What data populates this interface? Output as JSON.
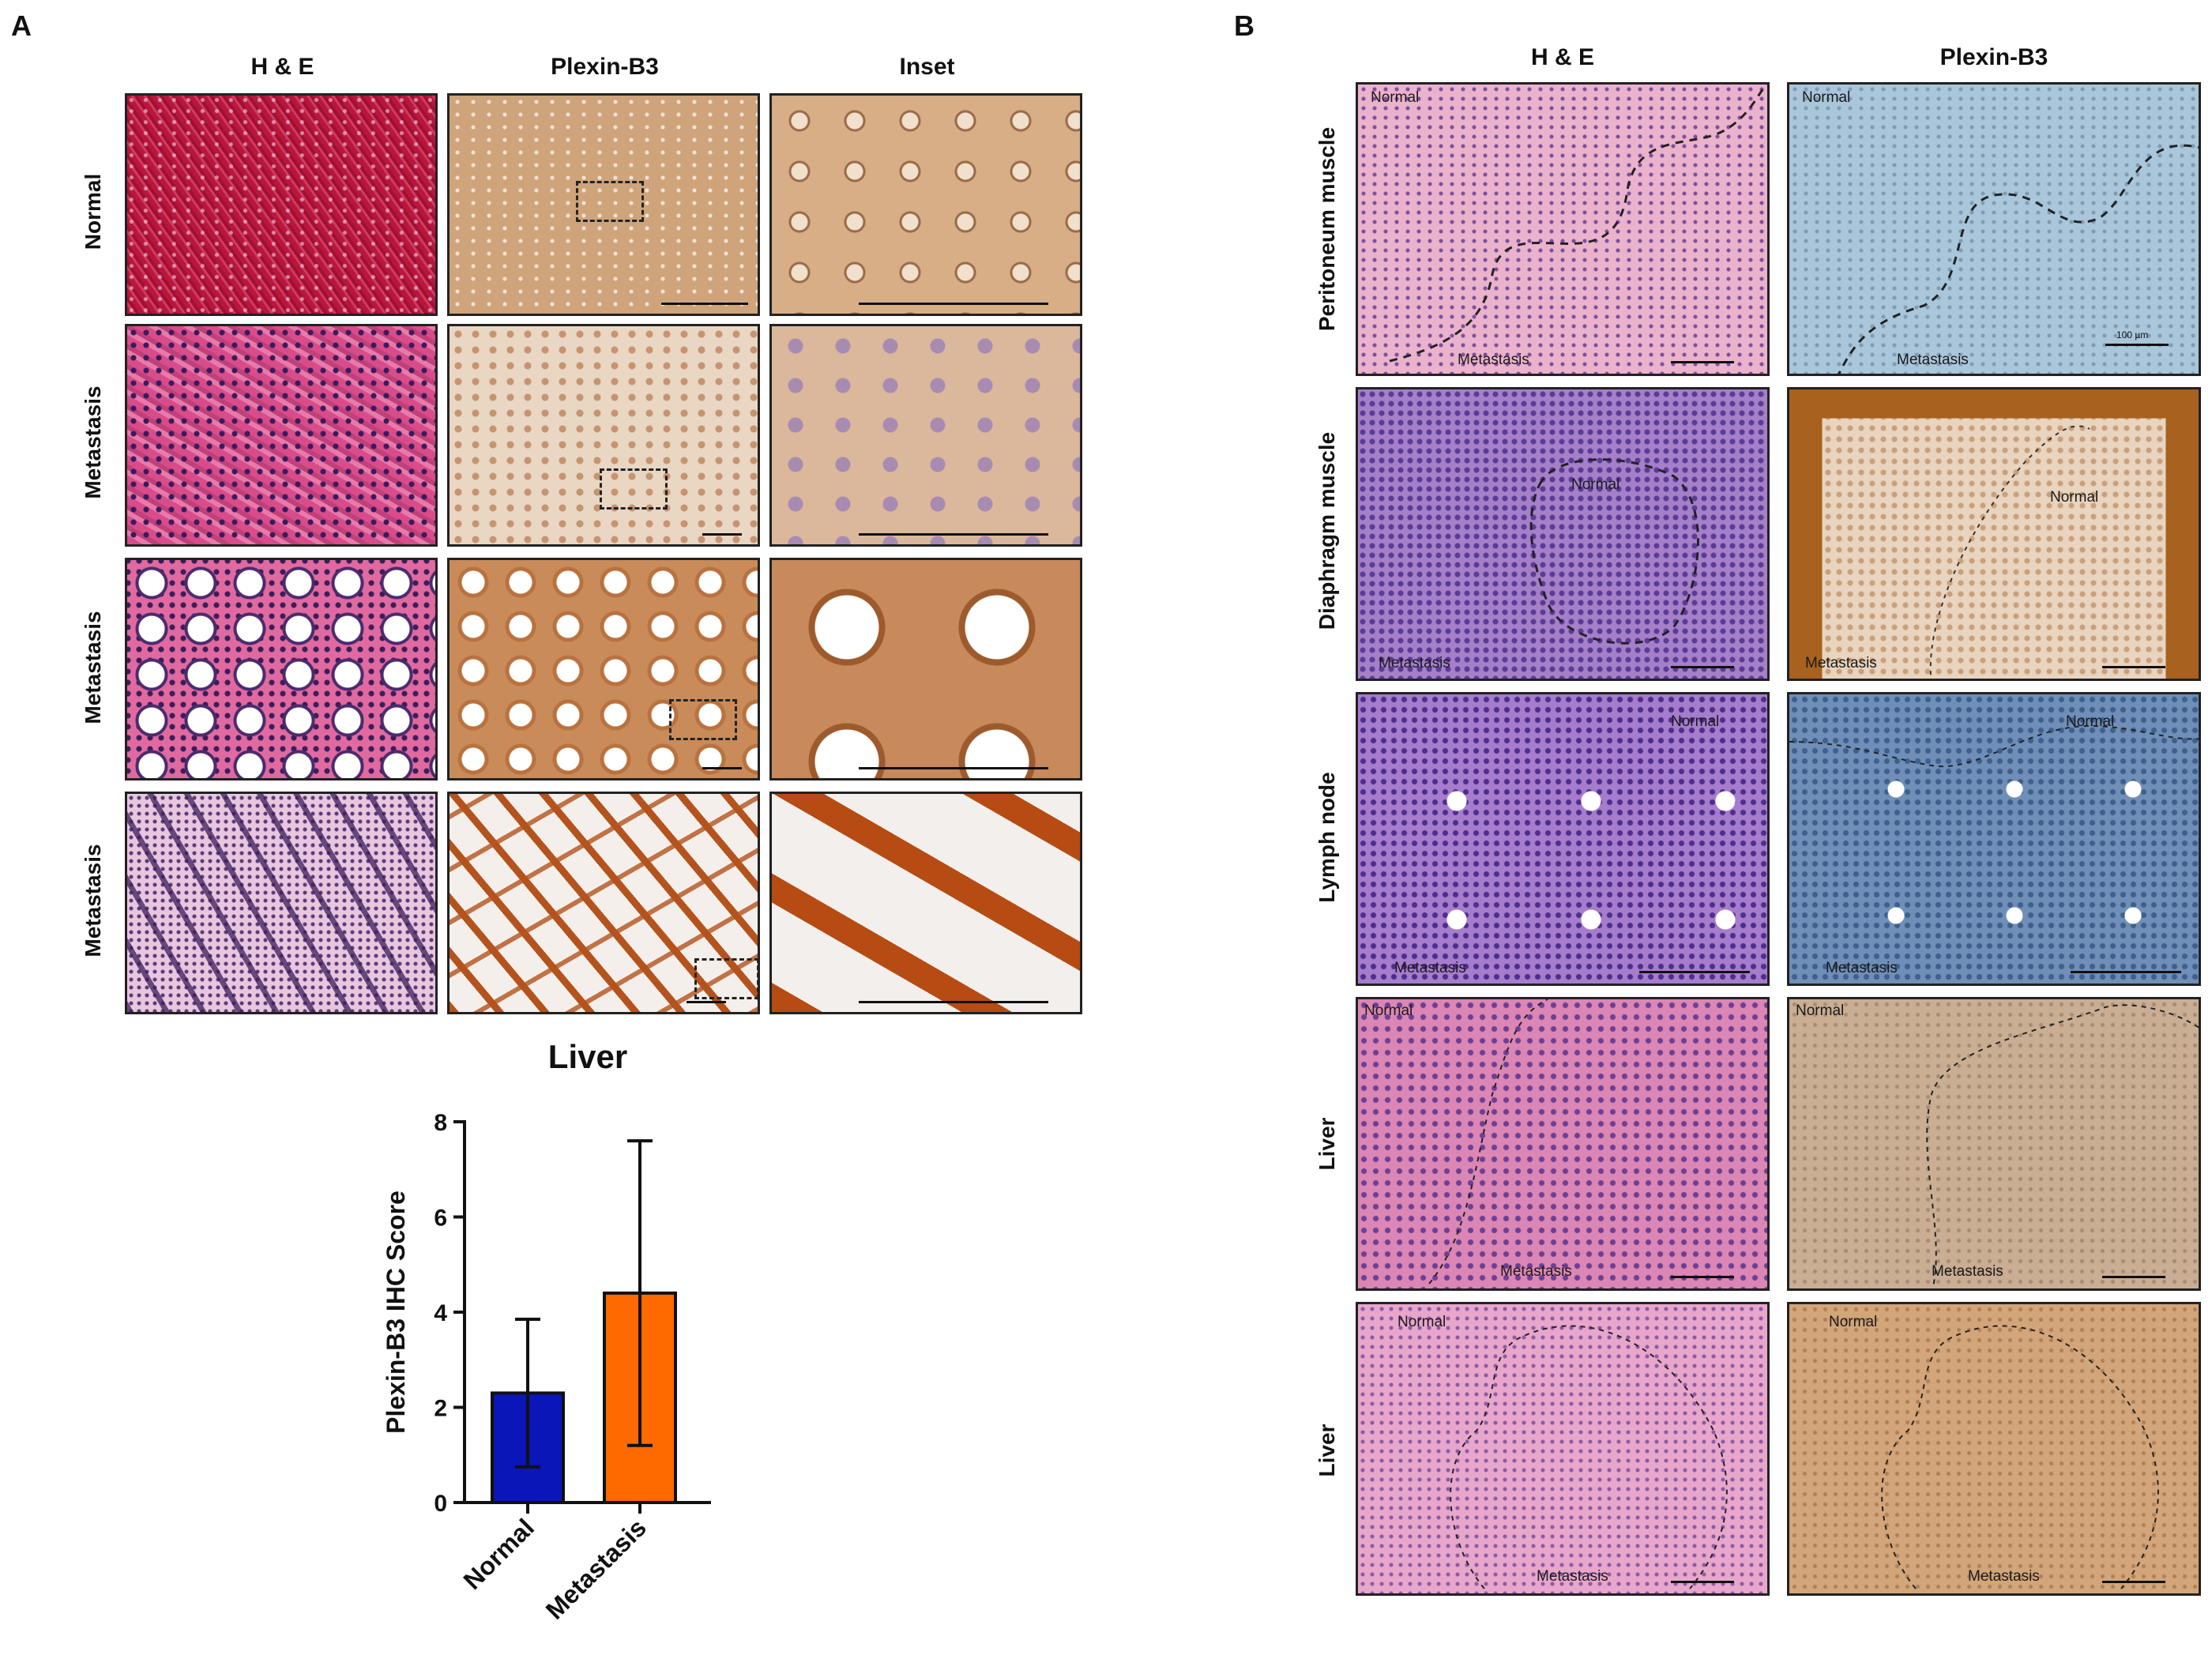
{
  "panel_a": {
    "letter": "A",
    "columns": [
      "H & E",
      "Plexin-B3",
      "Inset"
    ],
    "rows": [
      "Normal",
      "Metastasis",
      "Metastasis",
      "Metastasis"
    ],
    "tissue_colors": {
      "he": "#c1224a",
      "plexin": "#c98b5a",
      "stain_brown": "#b4531d"
    }
  },
  "panel_b": {
    "letter": "B",
    "columns": [
      "H & E",
      "Plexin-B3"
    ],
    "rows": [
      "Peritoneum muscle",
      "Diaphragm muscle",
      "Lymph node",
      "Liver",
      "Liver"
    ],
    "region_labels": {
      "normal": "Normal",
      "metastasis": "Metastasis"
    },
    "scale_bar_label": "100 µm"
  },
  "chart_data": {
    "type": "bar",
    "title": "Liver",
    "xlabel": "",
    "ylabel": "Plexin-B3 IHC Score",
    "categories": [
      "Normal",
      "Metastasis"
    ],
    "values": [
      2.3,
      4.4
    ],
    "error": [
      1.55,
      3.2
    ],
    "colors": [
      "#0a16b8",
      "#ff6a00"
    ],
    "ylim": [
      0,
      8
    ],
    "yticks": [
      0,
      2,
      4,
      6,
      8
    ],
    "grid": false,
    "legend": "none"
  }
}
